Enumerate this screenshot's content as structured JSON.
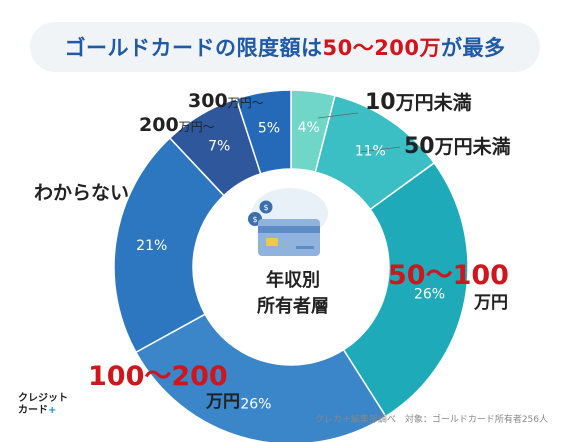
{
  "title": {
    "prefix": "ゴールドカードの限度額は",
    "highlight": "50〜200万",
    "suffix": "が最多"
  },
  "chart_data": {
    "type": "pie",
    "center_label": [
      "年収別",
      "所有者層"
    ],
    "slices": [
      {
        "label": "10万円未満",
        "value": 4,
        "display": "4%",
        "color": "#6fd6c8"
      },
      {
        "label": "50万円未満",
        "value": 11,
        "display": "11%",
        "color": "#3bbfc4"
      },
      {
        "label": "50〜100万円",
        "value": 26,
        "display": "26%",
        "color": "#1eaab8"
      },
      {
        "label": "100〜200万円",
        "value": 26,
        "display": "26%",
        "color": "#3a86c8"
      },
      {
        "label": "わからない",
        "value": 21,
        "display": "21%",
        "color": "#2d77c0"
      },
      {
        "label": "200万円〜",
        "value": 7,
        "display": "7%",
        "color": "#2f579c"
      },
      {
        "label": "300万円〜",
        "value": 5,
        "display": "5%",
        "color": "#2569b9"
      }
    ]
  },
  "labels": {
    "l10": {
      "num": "10",
      "unit": "万円未満"
    },
    "l50": {
      "num": "50",
      "unit": "万円未満"
    },
    "l50_100": {
      "num": "50〜100",
      "unit": "万円"
    },
    "l100_200": {
      "num": "100〜200",
      "unit": "万円"
    },
    "unknown": "わからない",
    "l200": {
      "num": "200",
      "unit": "万円〜"
    },
    "l300": {
      "num": "300",
      "unit": "万円〜"
    }
  },
  "logo": {
    "line1": "クレジット",
    "line2": "カード",
    "plus": "+"
  },
  "source": "クレカ＋編集部調べ　対象：ゴールドカード所有者256人",
  "icon": "credit-card-with-coins-icon"
}
